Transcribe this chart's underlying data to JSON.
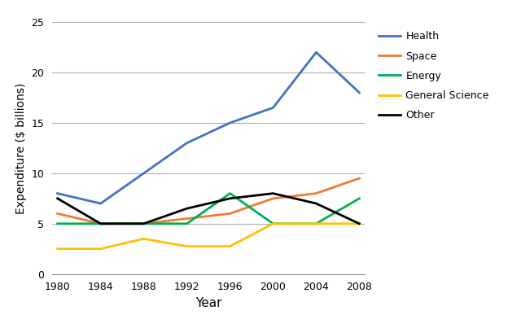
{
  "years": [
    1980,
    1984,
    1988,
    1992,
    1996,
    2000,
    2004,
    2008
  ],
  "series": {
    "Health": {
      "values": [
        8.0,
        7.0,
        10.0,
        13.0,
        15.0,
        16.5,
        22.0,
        18.0
      ],
      "color": "#4472C4"
    },
    "Space": {
      "values": [
        6.0,
        5.0,
        5.0,
        5.5,
        6.0,
        7.5,
        8.0,
        9.5
      ],
      "color": "#ED7D31"
    },
    "Energy": {
      "values": [
        5.0,
        5.0,
        5.0,
        5.0,
        8.0,
        5.0,
        5.0,
        7.5
      ],
      "color": "#00B050"
    },
    "General Science": {
      "values": [
        2.5,
        2.5,
        3.5,
        2.75,
        2.75,
        5.0,
        5.0,
        5.0
      ],
      "color": "#FFC000"
    },
    "Other": {
      "values": [
        7.5,
        5.0,
        5.0,
        6.5,
        7.5,
        8.0,
        7.0,
        5.0
      ],
      "color": "#000000"
    }
  },
  "xlabel": "Year",
  "ylabel": "Expenditure ($ billions)",
  "ylim": [
    0,
    25
  ],
  "yticks": [
    0,
    5,
    10,
    15,
    20,
    25
  ],
  "xticks": [
    1980,
    1984,
    1988,
    1992,
    1996,
    2000,
    2004,
    2008
  ],
  "legend_order": [
    "Health",
    "Space",
    "Energy",
    "General Science",
    "Other"
  ],
  "background_color": "#ffffff",
  "grid_color": "#b0b0b0",
  "line_width": 2.0,
  "figsize": [
    6.4,
    3.87
  ],
  "dpi": 100
}
